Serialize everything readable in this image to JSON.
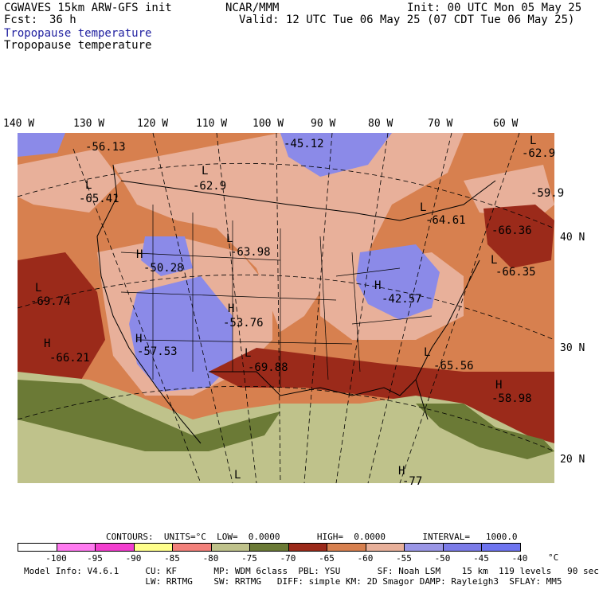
{
  "header": {
    "model": "CGWAVES 15km ARW-GFS init",
    "fcst_label": "Fcst:",
    "fcst_value": "36 h",
    "org": "NCAR/MMM",
    "init": "Init: 00 UTC Mon 05 May 25",
    "valid": "Valid: 12 UTC Tue 06 May 25 (07 CDT Tue 06 May 25)",
    "field1": "Tropopause temperature",
    "field2": "Tropopause temperature"
  },
  "axes": {
    "lon_labels": [
      "140 W",
      "130 W",
      "120 W",
      "110 W",
      "100 W",
      "90 W",
      "80 W",
      "70 W",
      "60 W"
    ],
    "lat_labels": [
      "40 N",
      "30 N",
      "20 N"
    ]
  },
  "map_labels": [
    {
      "id": "h1",
      "text": "-56.13"
    },
    {
      "id": "h2",
      "text": "-45.12"
    },
    {
      "id": "h3",
      "text": "-62.9"
    },
    {
      "id": "h4",
      "text": "-62.9"
    },
    {
      "id": "h5",
      "text": "-65.41"
    },
    {
      "id": "h6",
      "text": "-59.9"
    },
    {
      "id": "h7",
      "text": "-64.61"
    },
    {
      "id": "h8",
      "text": "-66.36"
    },
    {
      "id": "h9",
      "text": "-63.98"
    },
    {
      "id": "h10",
      "text": "-50.28"
    },
    {
      "id": "h11",
      "text": "-66.35"
    },
    {
      "id": "h12",
      "text": "-69.74"
    },
    {
      "id": "h13",
      "text": "-42.57"
    },
    {
      "id": "h14",
      "text": "-53.76"
    },
    {
      "id": "h15",
      "text": "-57.53"
    },
    {
      "id": "h16",
      "text": "-66.21"
    },
    {
      "id": "h17",
      "text": "-69.88"
    },
    {
      "id": "h18",
      "text": "-65.56"
    },
    {
      "id": "h19",
      "text": "-58.98"
    },
    {
      "id": "h20",
      "text": "-77"
    }
  ],
  "extrema": [
    {
      "id": "e1",
      "text": "L"
    },
    {
      "id": "e2",
      "text": "L"
    },
    {
      "id": "e3",
      "text": "L"
    },
    {
      "id": "e4",
      "text": "H"
    },
    {
      "id": "e5",
      "text": "L"
    },
    {
      "id": "e6",
      "text": "L"
    },
    {
      "id": "e7",
      "text": "L"
    },
    {
      "id": "e8",
      "text": "H"
    },
    {
      "id": "e9",
      "text": "H"
    },
    {
      "id": "e10",
      "text": "H"
    },
    {
      "id": "e11",
      "text": "L"
    },
    {
      "id": "e12",
      "text": "H"
    },
    {
      "id": "e13",
      "text": "H"
    },
    {
      "id": "e14",
      "text": "L"
    },
    {
      "id": "e15",
      "text": "H"
    },
    {
      "id": "e16",
      "text": "L"
    },
    {
      "id": "e17",
      "text": "L"
    }
  ],
  "contours": {
    "text": "CONTOURS:  UNITS=°C  LOW=  0.0000       HIGH=  0.0000       INTERVAL=   1000.0"
  },
  "colorbar": {
    "colors": [
      "#ffffff",
      "#ff7af0",
      "#f23ecf",
      "#ffff8c",
      "#f2807a",
      "#bfc28b",
      "#6b7a36",
      "#9b2a1a",
      "#d7804f",
      "#e8b09a",
      "#9a96e6",
      "#7b7be8",
      "#6e74f0"
    ],
    "labels": [
      "-100",
      "-95",
      "-90",
      "-85",
      "-80",
      "-75",
      "-70",
      "-65",
      "-60",
      "-55",
      "-50",
      "-45",
      "-40"
    ],
    "unit": "°C"
  },
  "footer": {
    "line1": "Model Info: V4.6.1     CU: KF       MP: WDM 6class  PBL: YSU       SF: Noah LSM    15 km  119 levels   90 sec",
    "line2": "                       LW: RRTMG    SW: RRTMG   DIFF: simple KM: 2D Smagor DAMP: Rayleigh3  SFLAY: MM5"
  }
}
